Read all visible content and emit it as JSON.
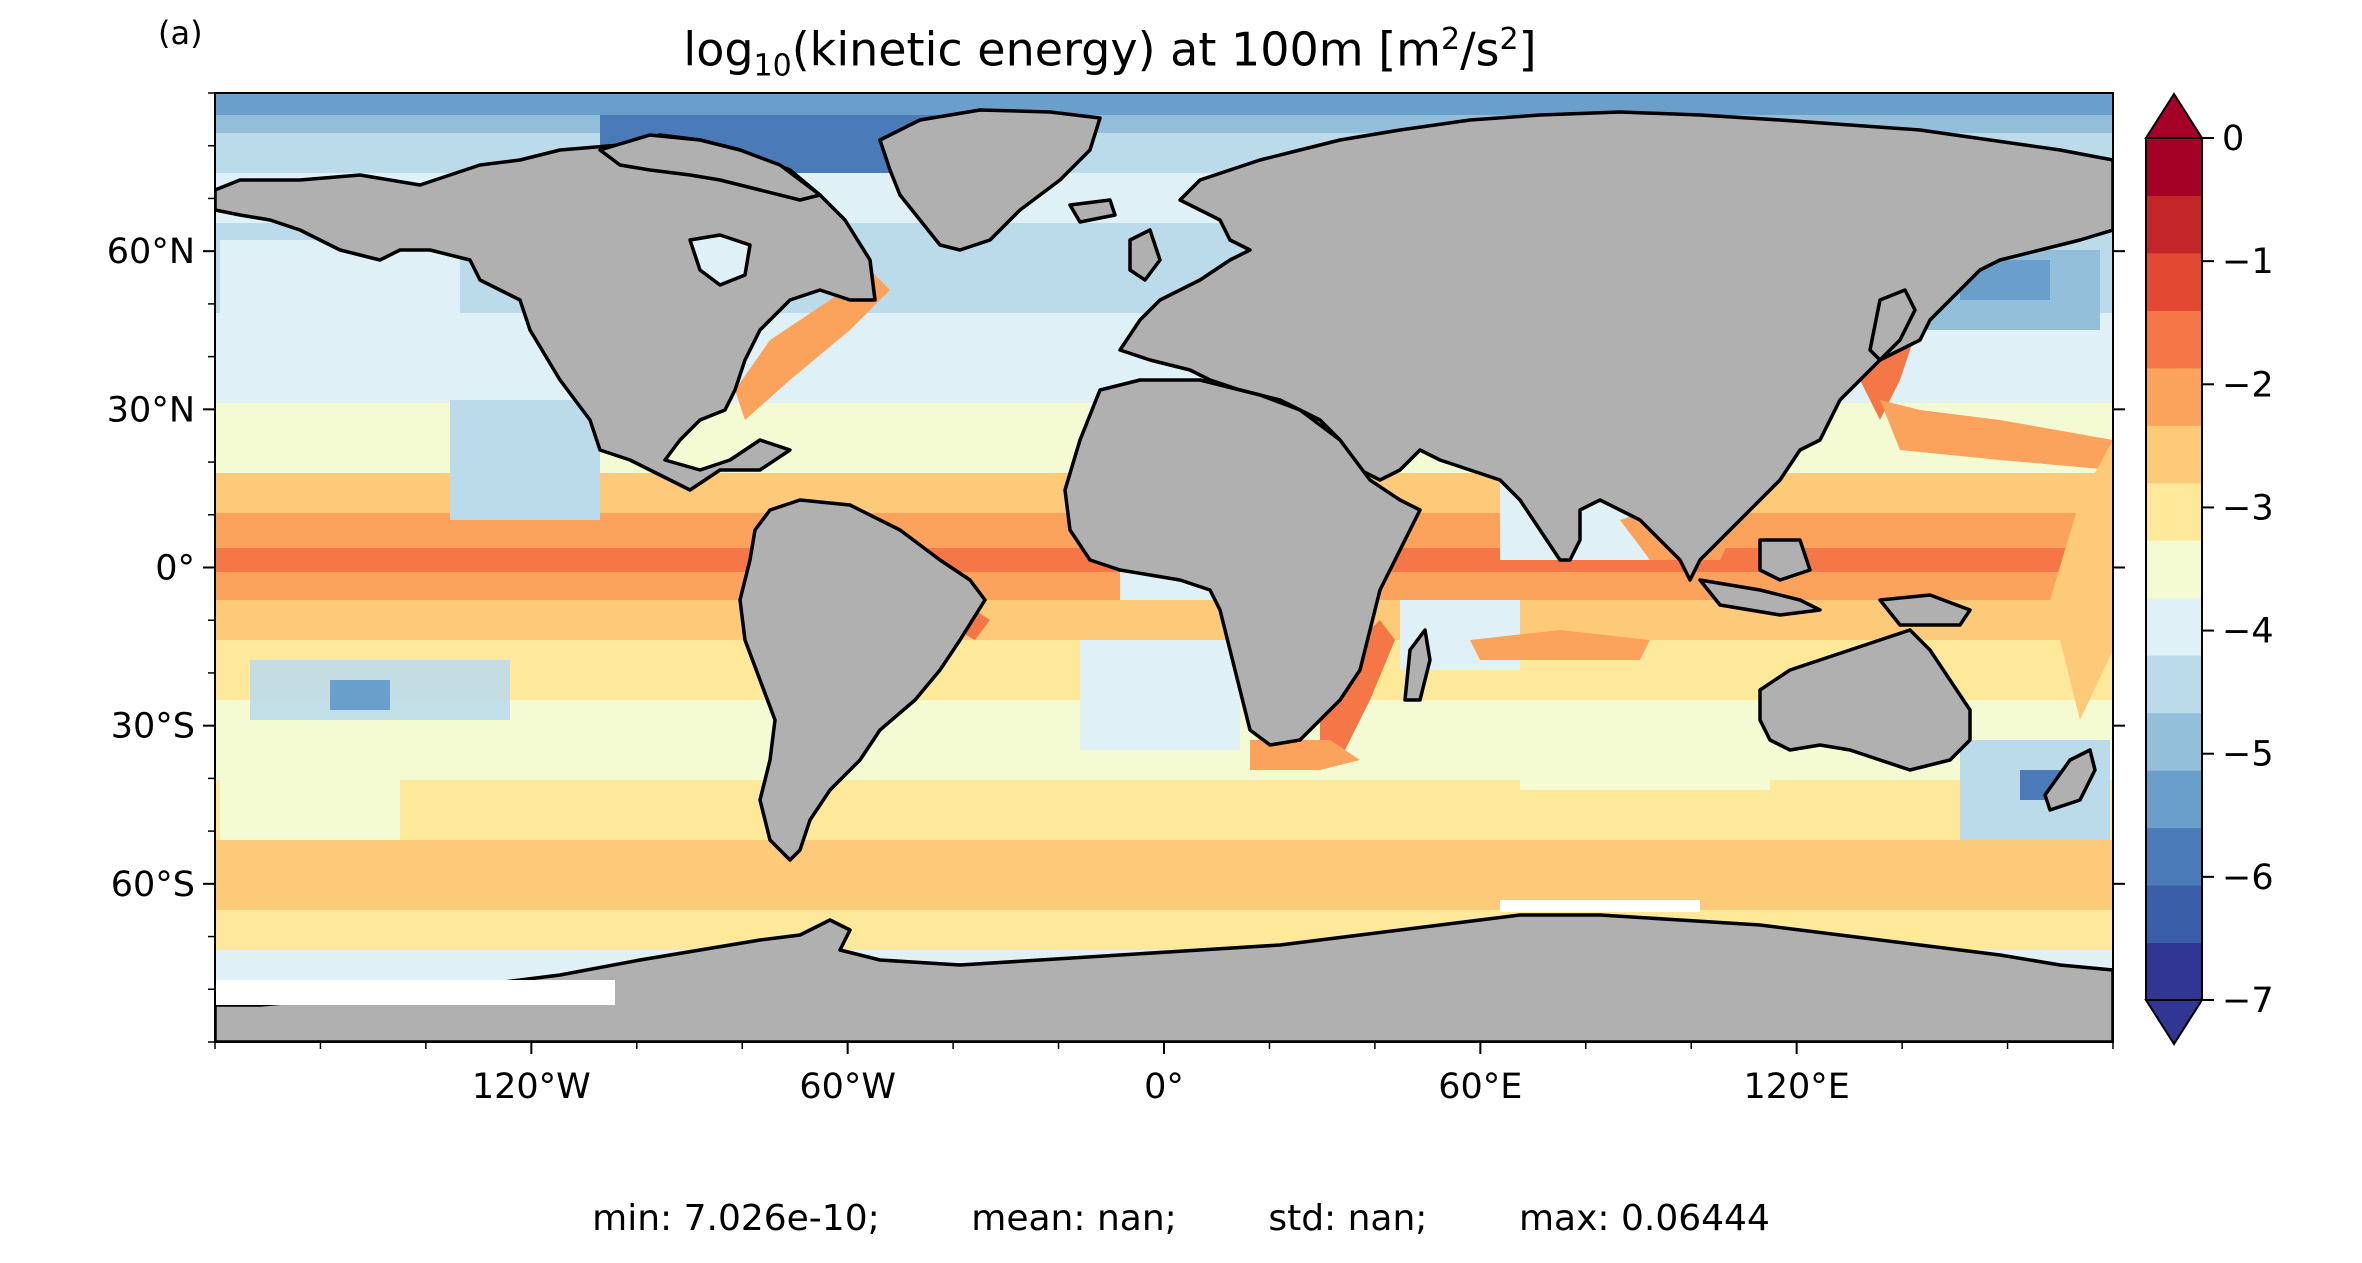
{
  "panel_label": "(a)",
  "title": {
    "prefix": "log",
    "sub": "10",
    "middle": "(kinetic energy) at 100m [m",
    "sup1": "2",
    "mid2": "/s",
    "sup2": "2",
    "suffix": "]"
  },
  "map": {
    "projection": "PlateCarree",
    "land_color": "#b0b0b0",
    "coast_color": "#000000",
    "lon_range": [
      -180,
      180
    ],
    "lat_range": [
      -90,
      90
    ],
    "lon_ticks": [
      {
        "value": -120,
        "label": "120°W"
      },
      {
        "value": -60,
        "label": "60°W"
      },
      {
        "value": 0,
        "label": "0°"
      },
      {
        "value": 60,
        "label": "60°E"
      },
      {
        "value": 120,
        "label": "120°E"
      }
    ],
    "lat_ticks": [
      {
        "value": 60,
        "label": "60°N"
      },
      {
        "value": 30,
        "label": "30°N"
      },
      {
        "value": 0,
        "label": "0°"
      },
      {
        "value": -30,
        "label": "30°S"
      },
      {
        "value": -60,
        "label": "60°S"
      }
    ]
  },
  "colorbar": {
    "range": [
      -7,
      0
    ],
    "extend": "both",
    "ticks": [
      {
        "value": 0,
        "label": "0"
      },
      {
        "value": -1,
        "label": "−1"
      },
      {
        "value": -2,
        "label": "−2"
      },
      {
        "value": -3,
        "label": "−3"
      },
      {
        "value": -4,
        "label": "−4"
      },
      {
        "value": -5,
        "label": "−5"
      },
      {
        "value": -6,
        "label": "−6"
      },
      {
        "value": -7,
        "label": "−7"
      }
    ],
    "colors": [
      "#313695",
      "#3a5ea8",
      "#4a7ab7",
      "#6a9fcb",
      "#94bfdb",
      "#bcdbea",
      "#dff1f6",
      "#f4fbd2",
      "#fee89a",
      "#fdca79",
      "#fba35c",
      "#f57748",
      "#e34932",
      "#c42528",
      "#a50026"
    ],
    "under_color": "#313695",
    "over_color": "#a50026"
  },
  "stats": {
    "text": "min: 7.026e-10;        mean: nan;        std: nan;        max: 0.06444"
  }
}
